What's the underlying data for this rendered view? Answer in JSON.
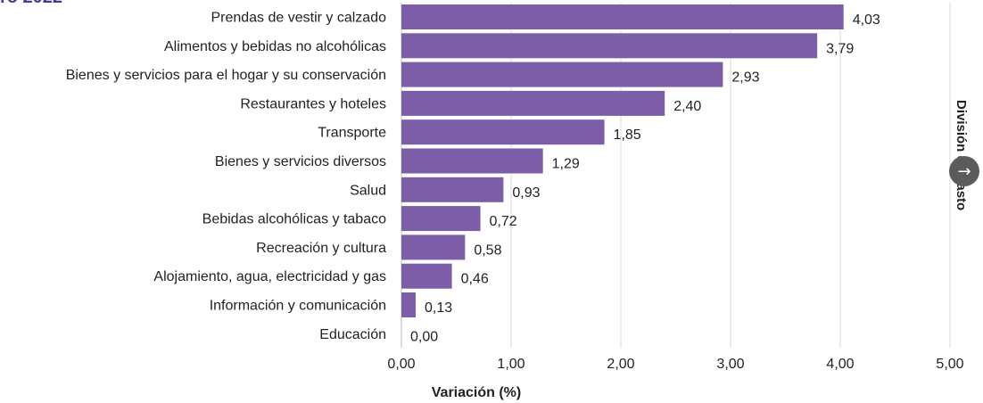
{
  "header": {
    "title_fragment": "ro 2022"
  },
  "side_panel": {
    "label": "División de gasto",
    "next_icon": "arrow-right-icon"
  },
  "colors": {
    "bar": "#7b5ea7",
    "grid": "#d9d9d9",
    "text": "#222222"
  },
  "chart_data": {
    "type": "bar",
    "orientation": "horizontal",
    "categories": [
      "Prendas de vestir y calzado",
      "Alimentos y bebidas no alcohólicas",
      "Bienes y servicios para el hogar y su conservación",
      "Restaurantes y hoteles",
      "Transporte",
      "Bienes y servicios diversos",
      "Salud",
      "Bebidas alcohólicas y tabaco",
      "Recreación y cultura",
      "Alojamiento, agua, electricidad y gas",
      "Información y comunicación",
      "Educación"
    ],
    "values": [
      4.03,
      3.79,
      2.93,
      2.4,
      1.85,
      1.29,
      0.93,
      0.72,
      0.58,
      0.46,
      0.13,
      0.0
    ],
    "value_labels": [
      "4,03",
      "3,79",
      "2,93",
      "2,40",
      "1,85",
      "1,29",
      "0,93",
      "0,72",
      "0,58",
      "0,46",
      "0,13",
      "0,00"
    ],
    "xlabel": "Variación (%)",
    "xlim": [
      0,
      5
    ],
    "xticks": [
      0,
      1,
      2,
      3,
      4,
      5
    ],
    "xtick_labels": [
      "0,00",
      "1,00",
      "2,00",
      "3,00",
      "4,00",
      "5,00"
    ],
    "grid": true
  }
}
